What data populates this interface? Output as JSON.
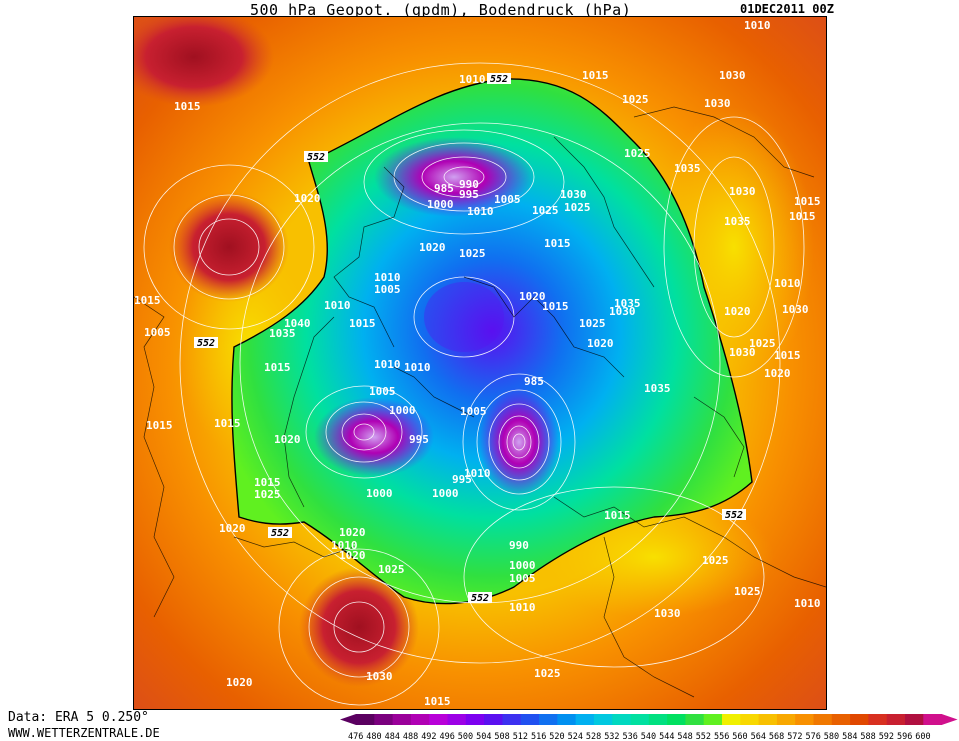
{
  "header": {
    "title": "500 hPa Geopot. (gpdm), Bodendruck (hPa)",
    "date": "01DEC2011 00Z"
  },
  "footer": {
    "data_source": "Data: ERA 5 0.250°",
    "website": "WWW.WETTERZENTRALE.DE"
  },
  "legend": {
    "ticks": [
      "476",
      "480",
      "484",
      "488",
      "492",
      "496",
      "500",
      "504",
      "508",
      "512",
      "516",
      "520",
      "524",
      "528",
      "532",
      "536",
      "540",
      "544",
      "548",
      "552",
      "556",
      "560",
      "564",
      "568",
      "572",
      "576",
      "580",
      "584",
      "588",
      "592",
      "596",
      "600"
    ],
    "colors": [
      "#5a0060",
      "#7a007e",
      "#9a009a",
      "#b000b4",
      "#b800d8",
      "#9c00e6",
      "#7c00f0",
      "#5a10f0",
      "#3c30f0",
      "#2050f0",
      "#1070f0",
      "#0090f0",
      "#00b0f0",
      "#00c8e0",
      "#00d8c0",
      "#00e0a0",
      "#00e080",
      "#00e060",
      "#30e040",
      "#60f020",
      "#f0f000",
      "#f8d800",
      "#f8c000",
      "#f8a800",
      "#f89000",
      "#f07800",
      "#e86000",
      "#e04800",
      "#d83020",
      "#c82030",
      "#b01040",
      "#d0108c"
    ]
  },
  "map": {
    "contour_552_label": "552",
    "pressure_labels": [
      "1010",
      "1015",
      "1010",
      "1020",
      "1025",
      "1030",
      "1015",
      "1025",
      "1030",
      "1015",
      "1030",
      "1035",
      "1030",
      "1035",
      "1015",
      "985",
      "990",
      "995",
      "1005",
      "1000",
      "1010",
      "1025",
      "1025",
      "1020",
      "1025",
      "1030",
      "1015",
      "1010",
      "1005",
      "1020",
      "1015",
      "1010",
      "1035",
      "1040",
      "1015",
      "1010",
      "1015",
      "1005",
      "1010",
      "1030",
      "1025",
      "1020",
      "1015",
      "1030",
      "1025",
      "1020",
      "1035",
      "1015",
      "1015",
      "985",
      "1005",
      "1000",
      "995",
      "1005",
      "1010",
      "1010",
      "1015",
      "1020",
      "1015",
      "1015",
      "1000",
      "1000",
      "995",
      "1025",
      "990",
      "1000",
      "1005",
      "1020",
      "1020",
      "1010",
      "1020",
      "1025",
      "1025",
      "1025",
      "1010",
      "1030",
      "1025",
      "1020",
      "1015",
      "1010",
      "1030",
      "1020",
      "1035"
    ]
  }
}
